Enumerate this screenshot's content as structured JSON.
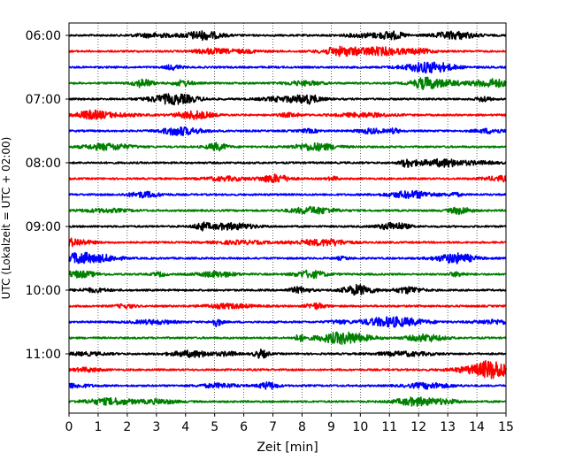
{
  "chart_data": {
    "type": "line",
    "title": "",
    "xlabel": "Zeit  [min]",
    "ylabel": "UTC (Lokalzeit = UTC + 02:00)",
    "xlim": [
      0,
      15
    ],
    "xticks": [
      "0",
      "1",
      "2",
      "3",
      "4",
      "5",
      "6",
      "7",
      "8",
      "9",
      "10",
      "11",
      "12",
      "13",
      "14",
      "15"
    ],
    "yticks": [
      "06:00",
      "07:00",
      "08:00",
      "09:00",
      "10:00",
      "11:00"
    ],
    "grid": "vertical dotted lines at each minute",
    "trace_interval_minutes": 15,
    "traces_start": "06:00",
    "trace_count": 24,
    "series_color_cycle": [
      "#000000",
      "#ff0000",
      "#0000ff",
      "#008000"
    ],
    "series": [
      {
        "start": "06:00",
        "color": "#000000"
      },
      {
        "start": "06:15",
        "color": "#ff0000"
      },
      {
        "start": "06:30",
        "color": "#0000ff"
      },
      {
        "start": "06:45",
        "color": "#008000"
      },
      {
        "start": "07:00",
        "color": "#000000"
      },
      {
        "start": "07:15",
        "color": "#ff0000"
      },
      {
        "start": "07:30",
        "color": "#0000ff"
      },
      {
        "start": "07:45",
        "color": "#008000"
      },
      {
        "start": "08:00",
        "color": "#000000"
      },
      {
        "start": "08:15",
        "color": "#ff0000"
      },
      {
        "start": "08:30",
        "color": "#0000ff"
      },
      {
        "start": "08:45",
        "color": "#008000"
      },
      {
        "start": "09:00",
        "color": "#000000"
      },
      {
        "start": "09:15",
        "color": "#ff0000"
      },
      {
        "start": "09:30",
        "color": "#0000ff"
      },
      {
        "start": "09:45",
        "color": "#008000"
      },
      {
        "start": "10:00",
        "color": "#000000"
      },
      {
        "start": "10:15",
        "color": "#ff0000"
      },
      {
        "start": "10:30",
        "color": "#0000ff"
      },
      {
        "start": "10:45",
        "color": "#008000"
      },
      {
        "start": "11:00",
        "color": "#000000"
      },
      {
        "start": "11:15",
        "color": "#ff0000"
      },
      {
        "start": "11:30",
        "color": "#0000ff"
      },
      {
        "start": "11:45",
        "color": "#008000"
      }
    ]
  }
}
